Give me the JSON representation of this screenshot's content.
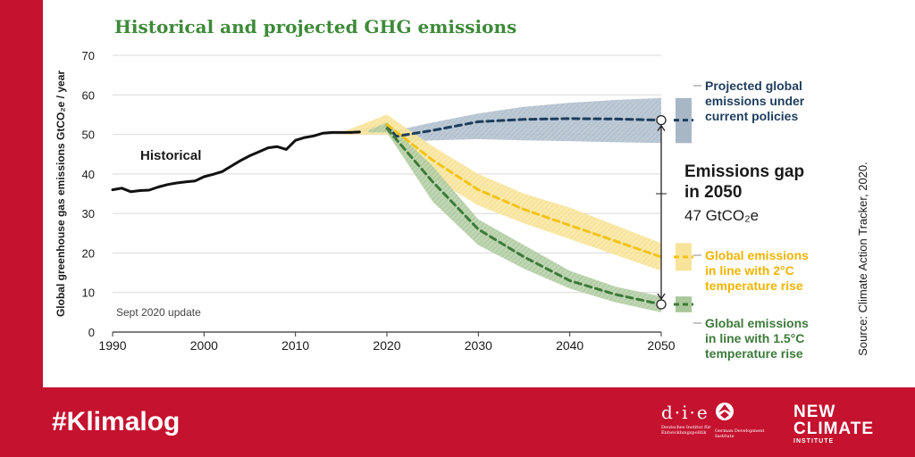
{
  "title": "Historical and projected GHG emissions",
  "footer": {
    "hashtag": "#Klimalog",
    "die_logo": "d·i·e",
    "die_sub": "Deutsches Institut für Entwicklungspolitik",
    "gdi_sub": "German Development Institute",
    "nci_line1": "NEW",
    "nci_line2": "CLIMATE",
    "nci_line3": "INSTITUTE"
  },
  "colors": {
    "brand_red": "#c4122f",
    "title_green": "#3e8a3a",
    "historical": "#111111",
    "current_policies": "#1f3d5c",
    "current_policies_band": "#a7b7c6",
    "two_degree": "#f2c318",
    "two_degree_band": "#f8e39a",
    "one_five_degree": "#3d7a3a",
    "one_five_degree_band": "#a9c79a",
    "text_dark": "#1a1a1a"
  },
  "chart_data": {
    "type": "line",
    "ylabel": "Global greenhouse gas emissions  GtCO₂e / year",
    "xlim": [
      1990,
      2050
    ],
    "ylim": [
      0,
      70
    ],
    "x_ticks": [
      1990,
      2000,
      2010,
      2020,
      2030,
      2040,
      2050
    ],
    "y_ticks": [
      0,
      10,
      20,
      30,
      40,
      50,
      60,
      70
    ],
    "grid": true,
    "note": "Sept 2020 update",
    "source": "Source: Climate Action Tracker, 2020.",
    "series": [
      {
        "name": "Historical",
        "key": "historical",
        "style": "solid",
        "x": [
          1990,
          1991,
          1992,
          1993,
          1994,
          1995,
          1996,
          1997,
          1998,
          1999,
          2000,
          2001,
          2002,
          2003,
          2004,
          2005,
          2006,
          2007,
          2008,
          2009,
          2010,
          2011,
          2012,
          2013,
          2014,
          2015,
          2016,
          2017
        ],
        "y": [
          36.0,
          36.4,
          35.5,
          35.8,
          35.9,
          36.7,
          37.3,
          37.7,
          38.0,
          38.2,
          39.3,
          39.9,
          40.6,
          42.0,
          43.4,
          44.6,
          45.6,
          46.6,
          46.9,
          46.2,
          48.5,
          49.2,
          49.6,
          50.3,
          50.5,
          50.5,
          50.5,
          50.6
        ]
      },
      {
        "name": "Projected global emissions under current policies",
        "key": "current",
        "style": "dashed",
        "x": [
          2020,
          2021,
          2025,
          2030,
          2035,
          2040,
          2045,
          2050
        ],
        "y": [
          52.5,
          49.5,
          51.0,
          53.2,
          53.8,
          54.0,
          53.9,
          53.6
        ],
        "band": {
          "x": [
            2016,
            2020,
            2021,
            2025,
            2030,
            2035,
            2040,
            2045,
            2050
          ],
          "low": [
            50.5,
            51.0,
            48.0,
            48.5,
            48.8,
            48.5,
            48.3,
            48.0,
            47.8
          ],
          "high": [
            50.6,
            53.0,
            51.0,
            53.0,
            55.3,
            57.0,
            58.0,
            58.7,
            59.2
          ]
        },
        "legend_label": "Projected global emissions under current policies"
      },
      {
        "name": "Global emissions in line with 2°C temperature rise",
        "key": "two_degree",
        "style": "dashed",
        "x": [
          2020,
          2025,
          2030,
          2035,
          2040,
          2045,
          2050
        ],
        "y": [
          52.5,
          43.5,
          36.0,
          31.0,
          27.0,
          23.0,
          19.0
        ],
        "band": {
          "x": [
            2015,
            2020,
            2025,
            2030,
            2035,
            2040,
            2045,
            2050
          ],
          "low": [
            50.0,
            50.0,
            39.0,
            32.0,
            27.5,
            23.5,
            19.5,
            15.5
          ],
          "high": [
            50.5,
            55.0,
            47.0,
            40.0,
            35.0,
            31.5,
            27.0,
            22.5
          ]
        },
        "legend_label": "Global emissions in line with 2°C temperature rise"
      },
      {
        "name": "Global emissions in line with 1.5°C temperature rise",
        "key": "one_five",
        "style": "dashed",
        "x": [
          2020,
          2025,
          2030,
          2035,
          2040,
          2045,
          2050
        ],
        "y": [
          51.5,
          38.0,
          26.0,
          19.0,
          13.0,
          9.5,
          7.0
        ],
        "band": {
          "x": [
            2018,
            2020,
            2025,
            2030,
            2035,
            2040,
            2045,
            2050
          ],
          "low": [
            50.5,
            50.5,
            33.0,
            22.0,
            16.0,
            11.0,
            7.5,
            5.0
          ],
          "high": [
            51.0,
            53.0,
            42.0,
            28.5,
            22.0,
            15.5,
            11.5,
            9.0
          ]
        },
        "legend_label": "Global emissions in line with 1.5°C temperature rise"
      }
    ],
    "annotations": {
      "historical_label": "Historical",
      "current_label_lines": [
        "Projected global",
        "emissions under",
        "current policies"
      ],
      "two_degree_label_lines": [
        "Global emissions",
        "in line with 2°C",
        "temperature rise"
      ],
      "one_five_label_lines": [
        "Global emissions",
        "in line with 1.5°C",
        "temperature rise"
      ],
      "gap_title_lines": [
        "Emissions gap",
        "in 2050"
      ],
      "gap_value": "47 GtCO₂e",
      "gap_from": 53.6,
      "gap_to": 7.0,
      "gap_x": 2050
    }
  }
}
